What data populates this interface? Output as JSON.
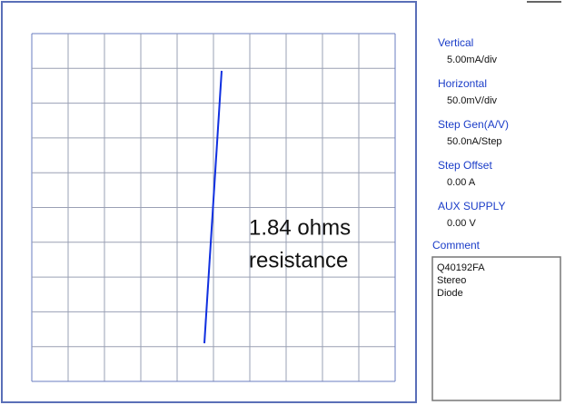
{
  "display": {
    "annotation": [
      "1.84 ohms",
      "resistance"
    ]
  },
  "settings": [
    {
      "label": "Vertical",
      "value": "5.00mA/div"
    },
    {
      "label": "Horizontal",
      "value": "50.0mV/div"
    },
    {
      "label": "Step Gen(A/V)",
      "value": "50.0nA/Step"
    },
    {
      "label": "Step Offset",
      "value": "0.00 A"
    },
    {
      "label": "AUX SUPPLY",
      "value": "0.00 V"
    }
  ],
  "comment": {
    "label": "Comment",
    "lines": [
      "Q40192FA",
      "Stereo",
      "Diode"
    ]
  }
}
